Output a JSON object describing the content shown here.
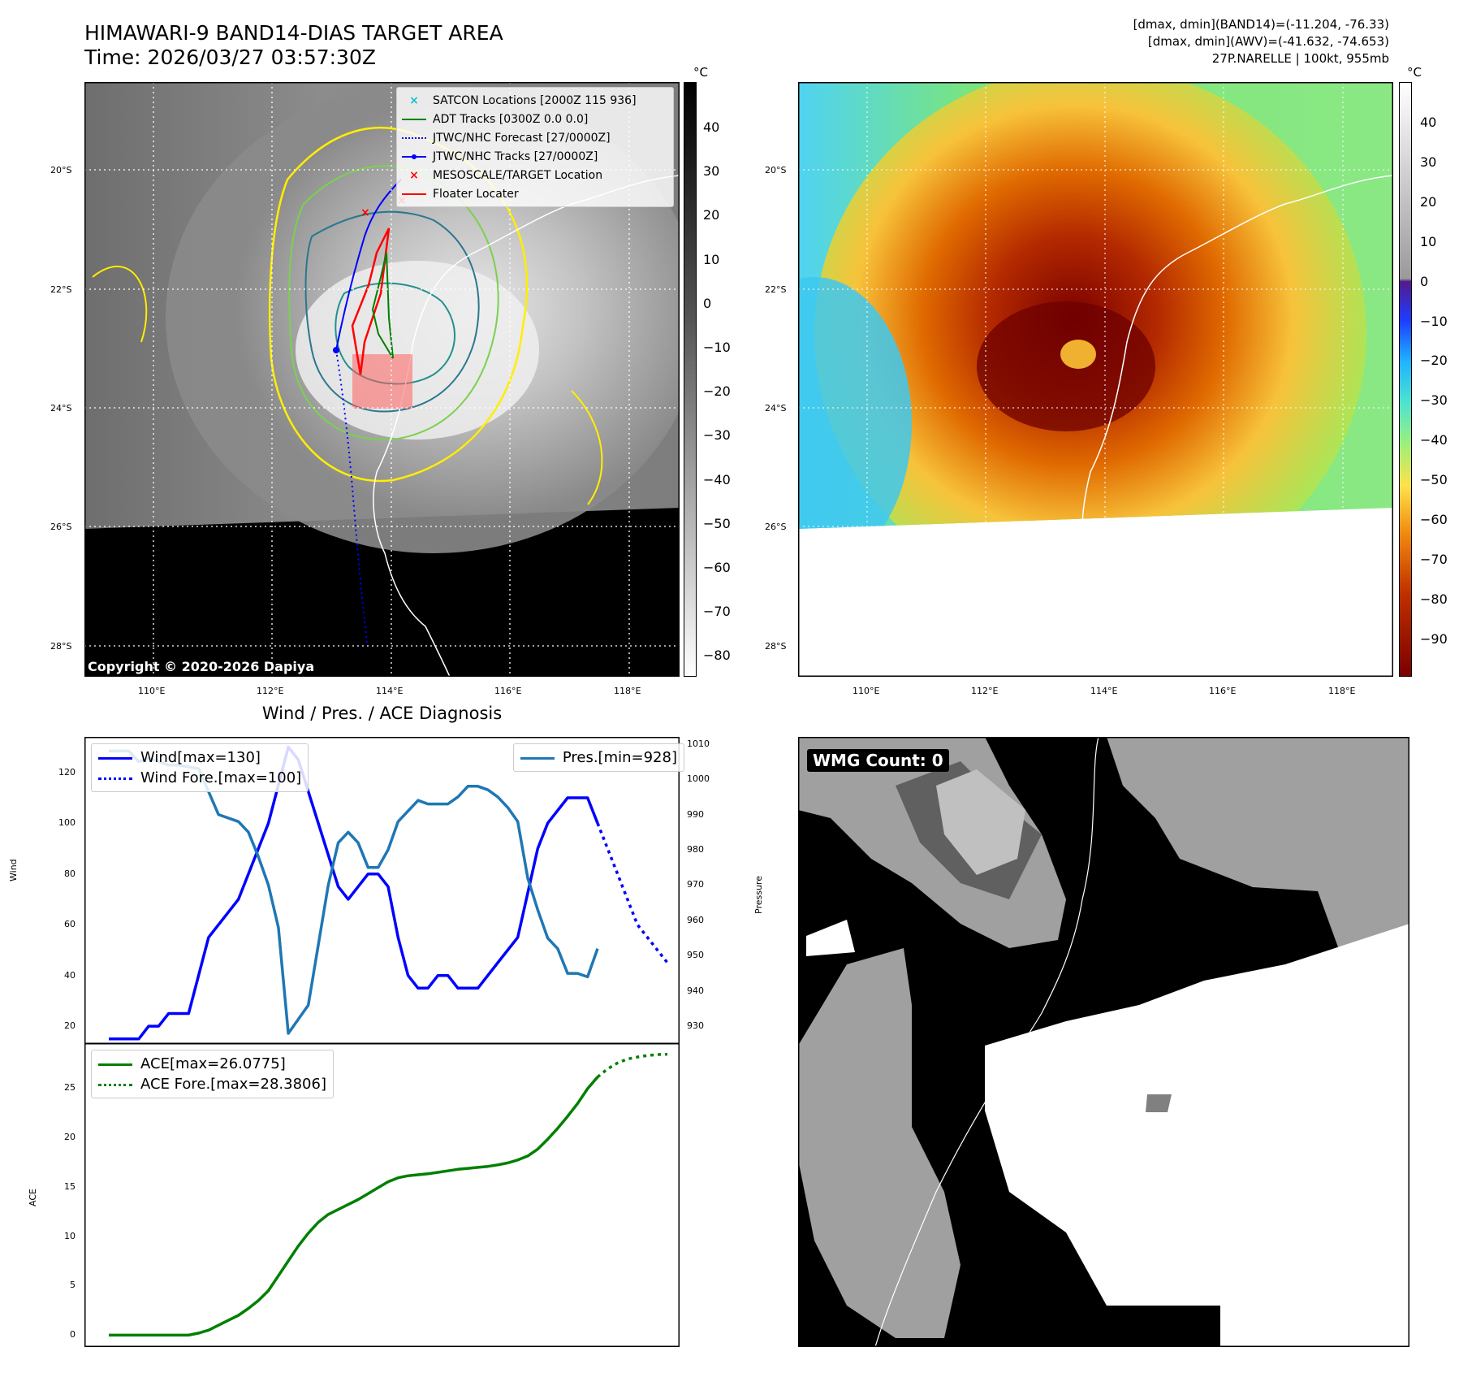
{
  "header": {
    "title_line1": "HIMAWARI-9 BAND14-DIAS TARGET AREA",
    "title_line2": "Time: 2026/03/27 03:57:30Z",
    "info_line1": "[dmax, dmin](BAND14)=(-11.204, -76.33)",
    "info_line2": "[dmax, dmin](AWV)=(-41.632, -74.653)",
    "info_line3": "27P.NARELLE | 100kt, 955mb"
  },
  "maps": {
    "lat_labels": [
      "20°S",
      "22°S",
      "24°S",
      "26°S",
      "28°S"
    ],
    "lon_labels": [
      "110°E",
      "112°E",
      "114°E",
      "116°E",
      "118°E"
    ],
    "copyright": "Copyright © 2020-2026 Dapiya",
    "unit_label": "°C",
    "legend": [
      {
        "label": "SATCON Locations [2000Z 115 936]",
        "color": "#17becf",
        "style": "x"
      },
      {
        "label": "ADT Tracks [0300Z 0.0 0.0]",
        "color": "#008000",
        "style": "line"
      },
      {
        "label": "JTWC/NHC Forecast [27/0000Z]",
        "color": "#0000ff",
        "style": "dotted"
      },
      {
        "label": "JTWC/NHC Tracks [27/0000Z]",
        "color": "#0000ff",
        "style": "line-dot"
      },
      {
        "label": "MESOSCALE/TARGET Location",
        "color": "#ff0000",
        "style": "x"
      },
      {
        "label": "Floater Locater",
        "color": "#ff0000",
        "style": "line"
      }
    ],
    "cb_gray_ticks": [
      "40",
      "30",
      "20",
      "10",
      "0",
      "−10",
      "−20",
      "−30",
      "−40",
      "−50",
      "−60",
      "−70",
      "−80"
    ],
    "cb_color_ticks": [
      "40",
      "30",
      "20",
      "10",
      "0",
      "−10",
      "−20",
      "−30",
      "−40",
      "−50",
      "−60",
      "−70",
      "−80",
      "−90"
    ],
    "wmg_count": "WMG Count: 0"
  },
  "chart_data": [
    {
      "type": "line",
      "title": "Wind / Pres. / ACE Diagnosis",
      "ylabel": "Wind",
      "y2label": "Pressure",
      "ylim": [
        13,
        134
      ],
      "y2lim": [
        925,
        1012
      ],
      "yticks": [
        "20",
        "40",
        "60",
        "80",
        "100",
        "120"
      ],
      "y2ticks": [
        "930",
        "940",
        "950",
        "960",
        "970",
        "980",
        "990",
        "1000",
        "1010"
      ],
      "legend_left": [
        "Wind[max=130]",
        "Wind Fore.[max=100]"
      ],
      "legend_right": "Pres.[min=928]",
      "series": [
        {
          "name": "Wind[max=130]",
          "color": "#0000ff",
          "style": "solid",
          "points": [
            [
              0,
              15
            ],
            [
              3,
              15
            ],
            [
              4,
              20
            ],
            [
              5,
              20
            ],
            [
              6,
              25
            ],
            [
              8,
              25
            ],
            [
              10,
              55
            ],
            [
              13,
              70
            ],
            [
              16,
              100
            ],
            [
              18,
              130
            ],
            [
              19,
              125
            ],
            [
              21,
              100
            ],
            [
              23,
              75
            ],
            [
              24,
              70
            ],
            [
              26,
              80
            ],
            [
              27,
              80
            ],
            [
              28,
              75
            ],
            [
              29,
              55
            ],
            [
              30,
              40
            ],
            [
              31,
              35
            ],
            [
              32,
              35
            ],
            [
              33,
              40
            ],
            [
              34,
              40
            ],
            [
              35,
              35
            ],
            [
              37,
              35
            ],
            [
              39,
              45
            ],
            [
              41,
              55
            ],
            [
              43,
              90
            ],
            [
              44,
              100
            ],
            [
              46,
              110
            ],
            [
              48,
              110
            ],
            [
              49,
              100
            ]
          ]
        },
        {
          "name": "Wind Fore.[max=100]",
          "color": "#0000ff",
          "style": "dotted",
          "points": [
            [
              49,
              100
            ],
            [
              51,
              80
            ],
            [
              53,
              60
            ],
            [
              55,
              50
            ],
            [
              56,
              45
            ]
          ]
        },
        {
          "name": "Pres.[min=928]",
          "color": "#1f77b4",
          "style": "solid",
          "axis": "right",
          "points": [
            [
              0,
              1008
            ],
            [
              2,
              1008
            ],
            [
              3,
              1005
            ],
            [
              4,
              1006
            ],
            [
              5,
              1005
            ],
            [
              6,
              1004
            ],
            [
              7,
              1004
            ],
            [
              9,
              1003
            ],
            [
              11,
              990
            ],
            [
              13,
              988
            ],
            [
              14,
              985
            ],
            [
              15,
              978
            ],
            [
              16,
              970
            ],
            [
              17,
              958
            ],
            [
              18,
              928
            ],
            [
              19,
              932
            ],
            [
              20,
              936
            ],
            [
              22,
              970
            ],
            [
              23,
              982
            ],
            [
              24,
              985
            ],
            [
              25,
              982
            ],
            [
              26,
              975
            ],
            [
              27,
              975
            ],
            [
              28,
              980
            ],
            [
              29,
              988
            ],
            [
              31,
              994
            ],
            [
              32,
              993
            ],
            [
              34,
              993
            ],
            [
              35,
              995
            ],
            [
              36,
              998
            ],
            [
              37,
              998
            ],
            [
              38,
              997
            ],
            [
              39,
              995
            ],
            [
              40,
              992
            ],
            [
              41,
              988
            ],
            [
              42,
              972
            ],
            [
              43,
              963
            ],
            [
              44,
              955
            ],
            [
              45,
              952
            ],
            [
              46,
              945
            ],
            [
              47,
              945
            ],
            [
              48,
              944
            ],
            [
              49,
              952
            ]
          ]
        }
      ]
    },
    {
      "type": "line",
      "ylabel": "ACE",
      "ylim": [
        -1.2,
        29.5
      ],
      "yticks": [
        "0",
        "5",
        "10",
        "15",
        "20",
        "25"
      ],
      "legend": [
        "ACE[max=26.0775]",
        "ACE Fore.[max=28.3806]"
      ],
      "series": [
        {
          "name": "ACE[max=26.0775]",
          "color": "#008000",
          "style": "solid",
          "points": [
            [
              0,
              0
            ],
            [
              8,
              0
            ],
            [
              9,
              0.2
            ],
            [
              10,
              0.5
            ],
            [
              11,
              1
            ],
            [
              12,
              1.5
            ],
            [
              13,
              2
            ],
            [
              14,
              2.7
            ],
            [
              15,
              3.5
            ],
            [
              16,
              4.5
            ],
            [
              17,
              6
            ],
            [
              18,
              7.5
            ],
            [
              19,
              9
            ],
            [
              20,
              10.3
            ],
            [
              21,
              11.4
            ],
            [
              22,
              12.2
            ],
            [
              23,
              12.7
            ],
            [
              24,
              13.2
            ],
            [
              25,
              13.7
            ],
            [
              26,
              14.3
            ],
            [
              27,
              14.9
            ],
            [
              28,
              15.5
            ],
            [
              29,
              15.9
            ],
            [
              30,
              16.1
            ],
            [
              31,
              16.2
            ],
            [
              32,
              16.3
            ],
            [
              33,
              16.45
            ],
            [
              34,
              16.6
            ],
            [
              35,
              16.75
            ],
            [
              36,
              16.85
            ],
            [
              37,
              16.95
            ],
            [
              38,
              17.05
            ],
            [
              39,
              17.2
            ],
            [
              40,
              17.4
            ],
            [
              41,
              17.7
            ],
            [
              42,
              18.1
            ],
            [
              43,
              18.8
            ],
            [
              44,
              19.8
            ],
            [
              45,
              20.9
            ],
            [
              46,
              22.1
            ],
            [
              47,
              23.4
            ],
            [
              48,
              24.9
            ],
            [
              49,
              26.08
            ]
          ]
        },
        {
          "name": "ACE Fore.[max=28.3806]",
          "color": "#008000",
          "style": "dotted",
          "points": [
            [
              49,
              26.08
            ],
            [
              50,
              26.9
            ],
            [
              51,
              27.5
            ],
            [
              52,
              27.9
            ],
            [
              53,
              28.1
            ],
            [
              54,
              28.25
            ],
            [
              55,
              28.35
            ],
            [
              56,
              28.38
            ]
          ]
        }
      ]
    }
  ]
}
